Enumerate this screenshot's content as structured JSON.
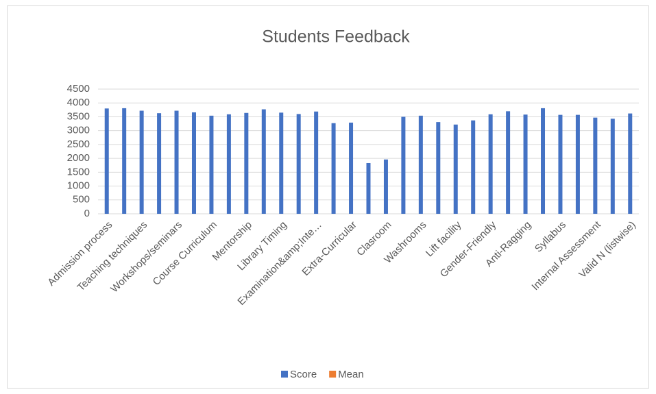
{
  "chart_data": {
    "type": "bar",
    "title": "Students Feedback",
    "categories": [
      "Admission process",
      null,
      "Teaching techniques",
      null,
      "Workshops/seminars",
      null,
      "Course Curriculum",
      null,
      "Mentorship",
      null,
      "Library Timing",
      null,
      "Examination&amp;Inte…",
      null,
      "Extra-Curricular",
      null,
      "Clasroom",
      null,
      "Washrooms",
      null,
      "Lift facility",
      null,
      "Gender-Friendly",
      null,
      "Anti-Ragging",
      null,
      "Syllabus",
      null,
      "Internal Assessment",
      null,
      "Valid N (listwise)"
    ],
    "series": [
      {
        "name": "Score",
        "color": "#4472c4",
        "values": [
          3800,
          3810,
          3720,
          3630,
          3720,
          3660,
          3540,
          3590,
          3640,
          3770,
          3650,
          3600,
          3690,
          3270,
          3290,
          1830,
          1960,
          3500,
          3540,
          3310,
          3220,
          3370,
          3590,
          3700,
          3580,
          3810,
          3570,
          3570,
          3470,
          3430,
          3620
        ]
      },
      {
        "name": "Mean",
        "color": "#ed7d31",
        "values": [
          null,
          null,
          null,
          null,
          null,
          null,
          null,
          null,
          null,
          null,
          null,
          null,
          null,
          null,
          null,
          null,
          null,
          null,
          null,
          null,
          null,
          null,
          null,
          null,
          null,
          null,
          null,
          null,
          null,
          null,
          null
        ]
      }
    ],
    "ylim": [
      0,
      4500
    ],
    "yticks": [
      0,
      500,
      1000,
      1500,
      2000,
      2500,
      3000,
      3500,
      4000,
      4500
    ],
    "grid": true,
    "legend": "bottom"
  }
}
